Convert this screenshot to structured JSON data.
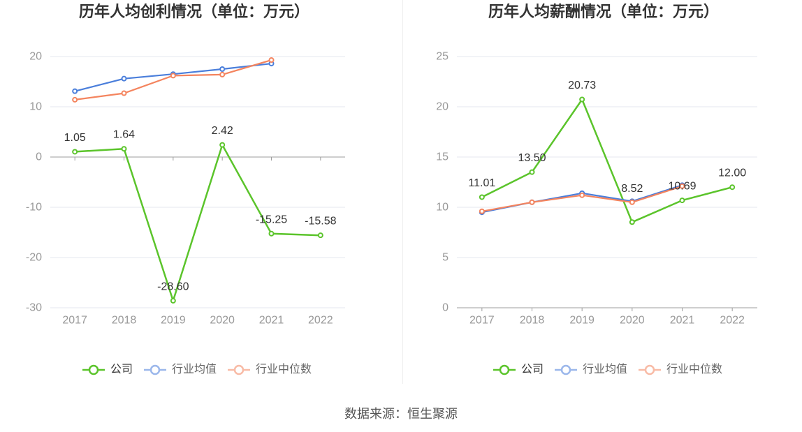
{
  "chart_data": [
    {
      "type": "line",
      "title": "历年人均创利情况（单位：万元）",
      "categories": [
        "2017",
        "2018",
        "2019",
        "2020",
        "2021",
        "2022"
      ],
      "ylim": [
        -30,
        20
      ],
      "yticks": [
        20,
        10,
        0,
        -10,
        -20,
        -30
      ],
      "grid": true,
      "legend": "bottom",
      "series": [
        {
          "name": "公司",
          "color": "#5bc42b",
          "values": [
            1.05,
            1.64,
            -28.6,
            2.42,
            -15.25,
            -15.58
          ],
          "data_labels": [
            "1.05",
            "1.64",
            "-28.60",
            "2.42",
            "-15.25",
            "-15.58"
          ]
        },
        {
          "name": "行业均值",
          "color": "#4a7edb",
          "values": [
            13.1,
            15.6,
            16.5,
            17.5,
            18.6,
            null
          ]
        },
        {
          "name": "行业中位数",
          "color": "#f4845e",
          "values": [
            11.4,
            12.7,
            16.2,
            16.4,
            19.3,
            null
          ]
        }
      ]
    },
    {
      "type": "line",
      "title": "历年人均薪酬情况（单位：万元）",
      "categories": [
        "2017",
        "2018",
        "2019",
        "2020",
        "2021",
        "2022"
      ],
      "ylim": [
        0,
        25
      ],
      "yticks": [
        25,
        20,
        15,
        10,
        5,
        0
      ],
      "grid": true,
      "legend": "bottom",
      "series": [
        {
          "name": "公司",
          "color": "#5bc42b",
          "values": [
            11.01,
            13.5,
            20.73,
            8.52,
            10.69,
            12.0
          ],
          "data_labels": [
            "11.01",
            "13.50",
            "20.73",
            "8.52",
            "10.69",
            "12.00"
          ]
        },
        {
          "name": "行业均值",
          "color": "#4a7edb",
          "values": [
            9.5,
            10.5,
            11.4,
            10.6,
            12.2,
            null
          ]
        },
        {
          "name": "行业中位数",
          "color": "#f4845e",
          "values": [
            9.6,
            10.5,
            11.2,
            10.5,
            12.1,
            null
          ]
        }
      ]
    }
  ],
  "footer": {
    "source": "数据来源：恒生聚源"
  }
}
